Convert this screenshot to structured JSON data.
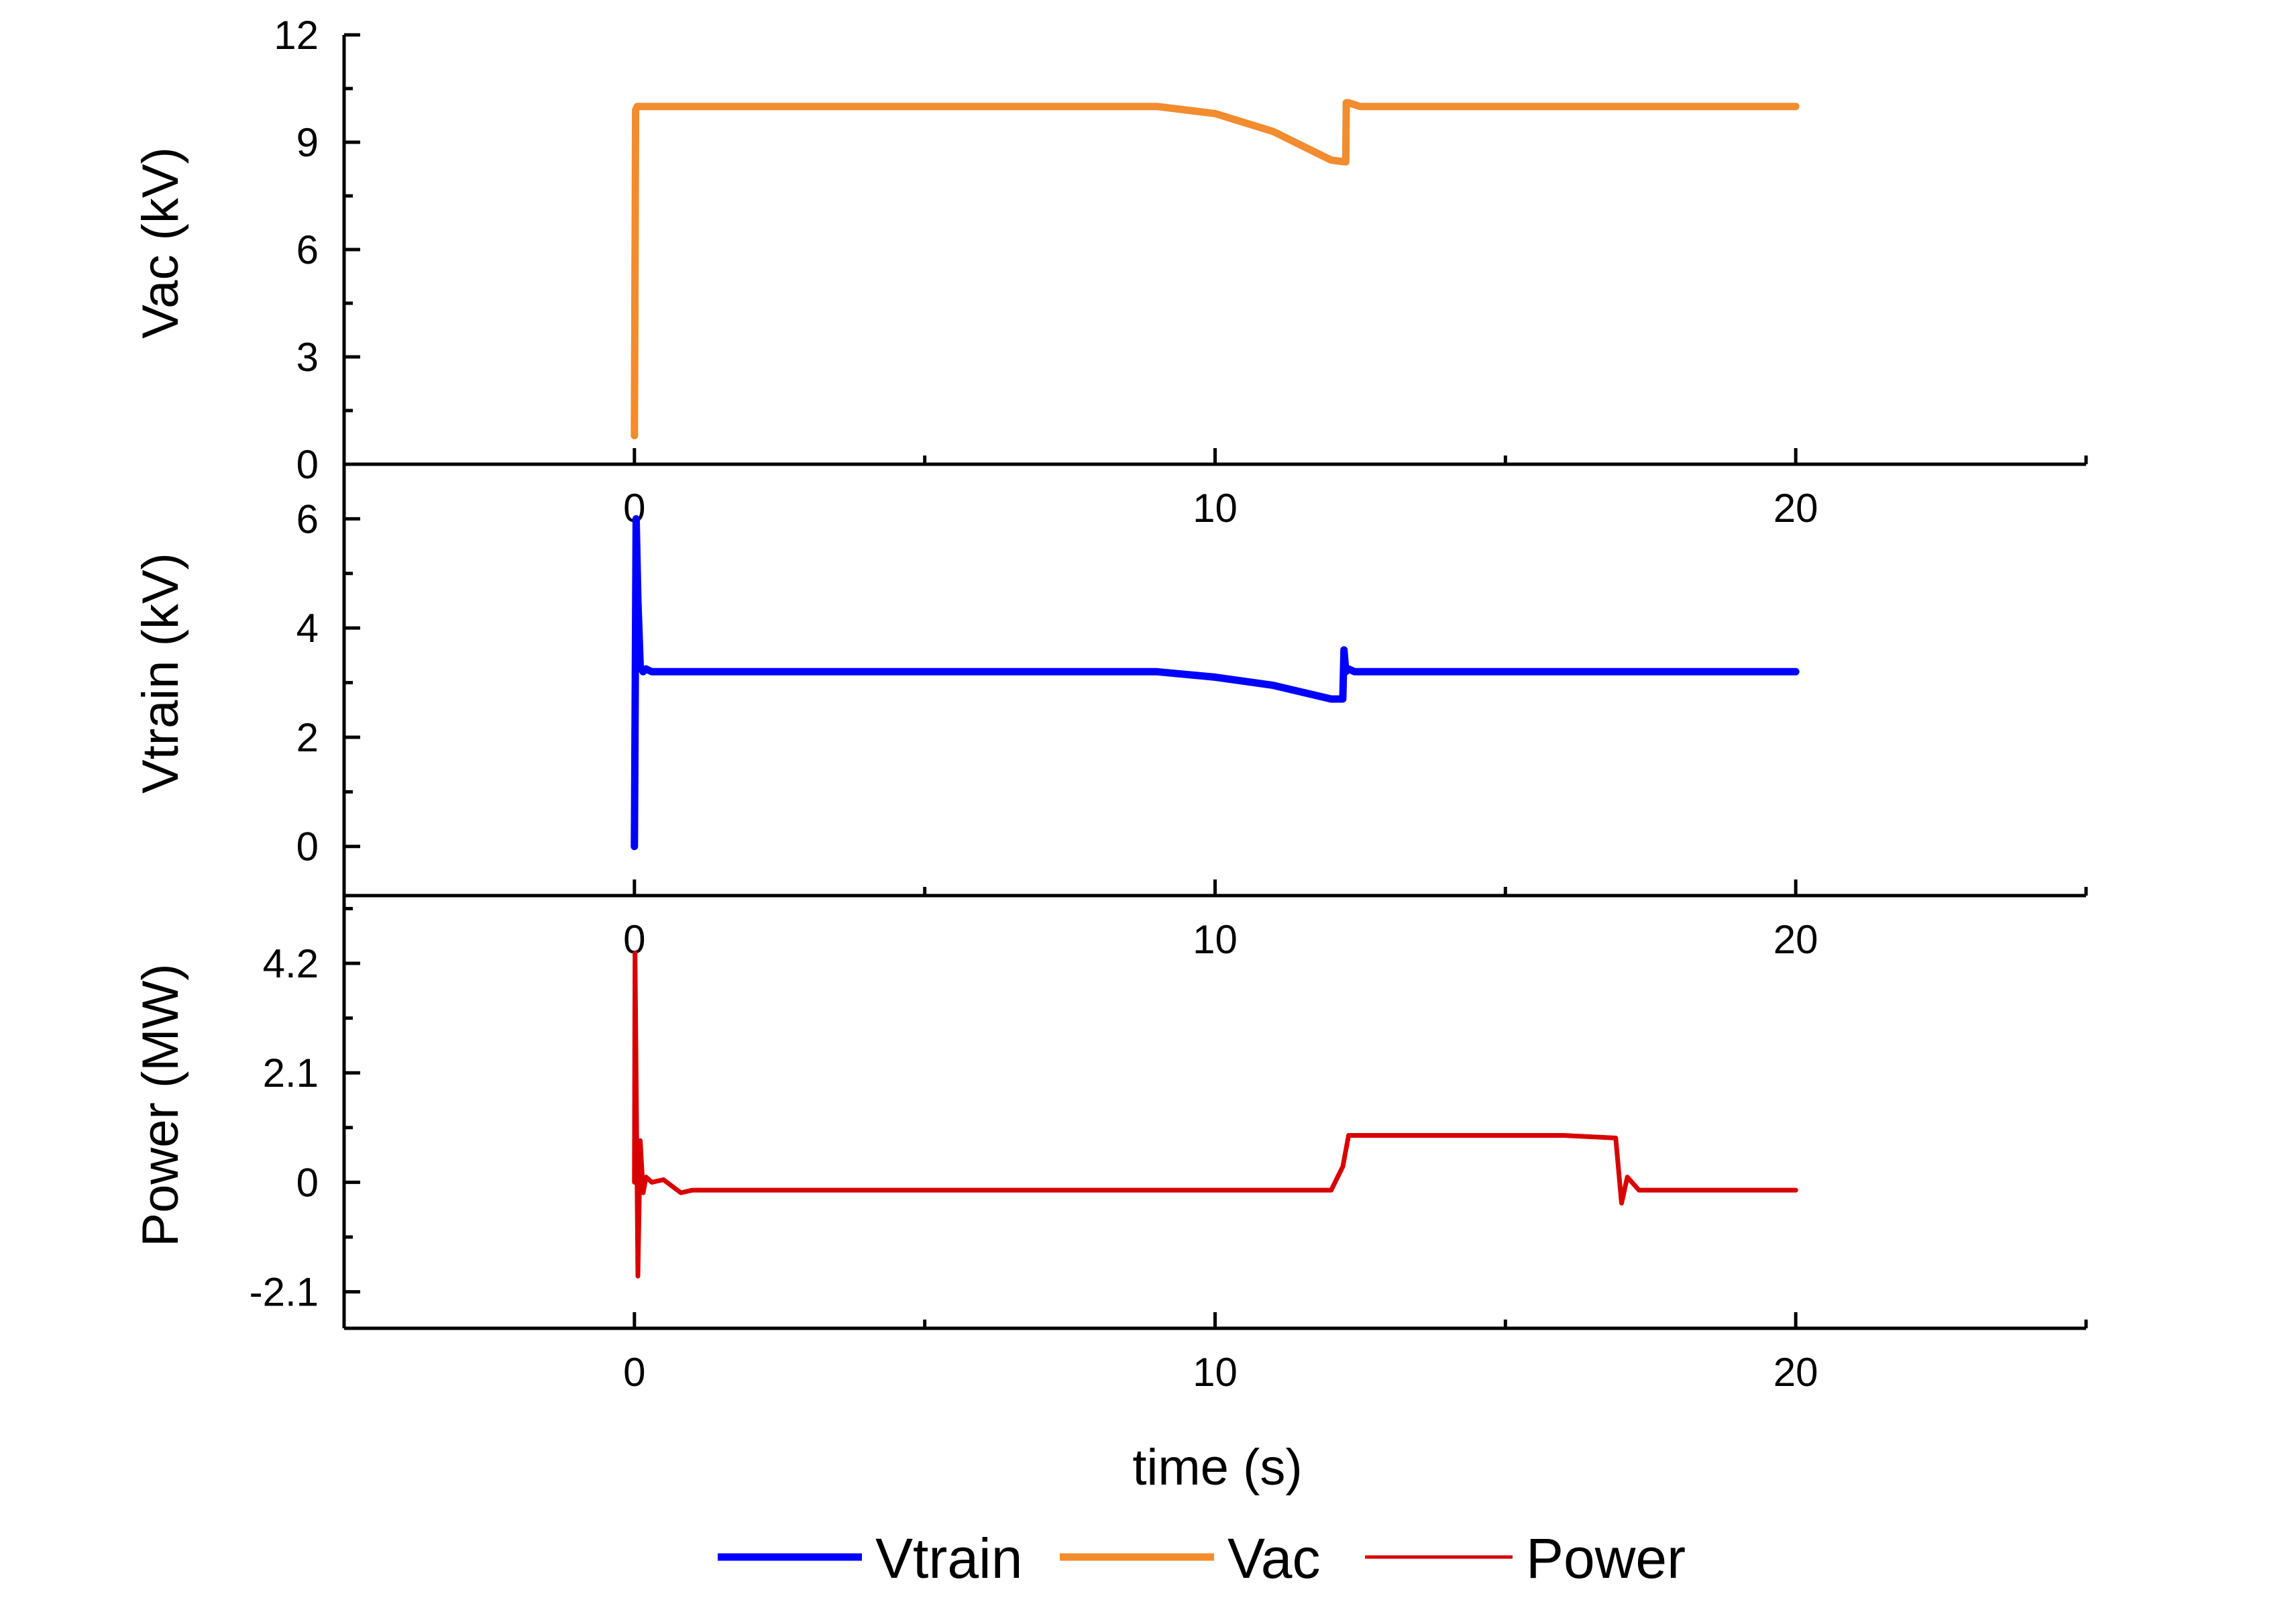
{
  "chart_data": {
    "type": "line",
    "xlabel": "time (s)",
    "x_ticks": [
      "0",
      "10",
      "20"
    ],
    "xlim": [
      -5,
      25
    ],
    "colors": {
      "Vtrain": "#0000ff",
      "Vac": "#f28c2e",
      "Power": "#d90000"
    },
    "legend": {
      "placement": "bottom-center",
      "entries": [
        "Vtrain",
        "Vac",
        "Power"
      ]
    },
    "panels": [
      {
        "id": "vac",
        "ylabel": "Vac (kV)",
        "ylim": [
          0,
          12
        ],
        "y_ticks": [
          "0",
          "3",
          "6",
          "9",
          "12"
        ],
        "series": [
          {
            "name": "Vac",
            "x": [
              0,
              0.02,
              0.05,
              3,
              6,
              9,
              10,
              11,
              12,
              12.25,
              12.26,
              12.3,
              12.5,
              13,
              20
            ],
            "y": [
              0.8,
              9.9,
              10.0,
              10.0,
              10.0,
              10.0,
              9.8,
              9.3,
              8.5,
              8.45,
              10.1,
              10.1,
              10.0,
              10.0,
              10.0
            ]
          }
        ]
      },
      {
        "id": "vtrain",
        "ylabel": "Vtrain (kV)",
        "ylim": [
          -0.9,
          7
        ],
        "y_ticks": [
          "0",
          "2",
          "4",
          "6"
        ],
        "series": [
          {
            "name": "Vtrain",
            "x": [
              0,
              0.03,
              0.06,
              0.1,
              0.15,
              0.2,
              0.3,
              2,
              5,
              9,
              10,
              11,
              12,
              12.2,
              12.22,
              12.25,
              12.3,
              12.4,
              14,
              20
            ],
            "y": [
              0,
              6.0,
              4.5,
              3.3,
              3.2,
              3.25,
              3.2,
              3.2,
              3.2,
              3.2,
              3.1,
              2.95,
              2.7,
              2.7,
              3.6,
              3.2,
              3.25,
              3.2,
              3.2,
              3.2
            ]
          }
        ]
      },
      {
        "id": "power",
        "ylabel": "Power (MW)",
        "ylim": [
          -2.8,
          5.5
        ],
        "y_ticks": [
          "-2.1",
          "0",
          "2.1",
          "4.2"
        ],
        "series": [
          {
            "name": "Power",
            "x": [
              0,
              0.01,
              0.03,
              0.06,
              0.1,
              0.15,
              0.2,
              0.3,
              0.5,
              0.8,
              1,
              5,
              10,
              12.0,
              12.2,
              12.3,
              14,
              16,
              16.9,
              17.0,
              17.1,
              17.3,
              20
            ],
            "y": [
              0,
              4.4,
              2.0,
              -1.8,
              0.8,
              -0.2,
              0.1,
              0,
              0.05,
              -0.2,
              -0.15,
              -0.15,
              -0.15,
              -0.15,
              0.3,
              0.9,
              0.9,
              0.9,
              0.85,
              -0.4,
              0.1,
              -0.15,
              -0.15
            ]
          }
        ]
      }
    ]
  }
}
